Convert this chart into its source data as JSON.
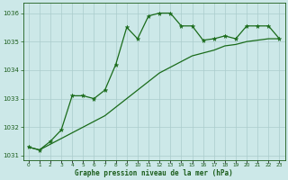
{
  "hours": [
    0,
    1,
    2,
    3,
    4,
    5,
    6,
    7,
    8,
    9,
    10,
    11,
    12,
    13,
    14,
    15,
    16,
    17,
    18,
    19,
    20,
    21,
    22,
    23
  ],
  "pressure_line": [
    1031.3,
    1031.2,
    1031.5,
    1031.9,
    1033.1,
    1033.1,
    1033.0,
    1033.3,
    1034.2,
    1035.5,
    1035.1,
    1035.9,
    1036.0,
    1036.0,
    1035.55,
    1035.55,
    1035.05,
    1035.1,
    1035.2,
    1035.1,
    1035.55,
    1035.55,
    1035.55,
    1035.1
  ],
  "trend_y": [
    1031.3,
    1031.2,
    1031.4,
    1031.6,
    1031.8,
    1032.0,
    1032.2,
    1032.4,
    1032.7,
    1033.0,
    1033.3,
    1033.6,
    1033.9,
    1034.1,
    1034.3,
    1034.5,
    1034.6,
    1034.7,
    1034.85,
    1034.9,
    1035.0,
    1035.05,
    1035.1,
    1035.1
  ],
  "line_color": "#1a6b1a",
  "bg_color": "#cce8e8",
  "grid_color": "#aacccc",
  "text_color": "#1a5c1a",
  "xlabel": "Graphe pression niveau de la mer (hPa)",
  "ylim": [
    1030.85,
    1036.35
  ],
  "xlim": [
    -0.5,
    23.5
  ],
  "yticks": [
    1031,
    1032,
    1033,
    1034,
    1035,
    1036
  ],
  "xticks": [
    0,
    1,
    2,
    3,
    4,
    5,
    6,
    7,
    8,
    9,
    10,
    11,
    12,
    13,
    14,
    15,
    16,
    17,
    18,
    19,
    20,
    21,
    22,
    23
  ]
}
